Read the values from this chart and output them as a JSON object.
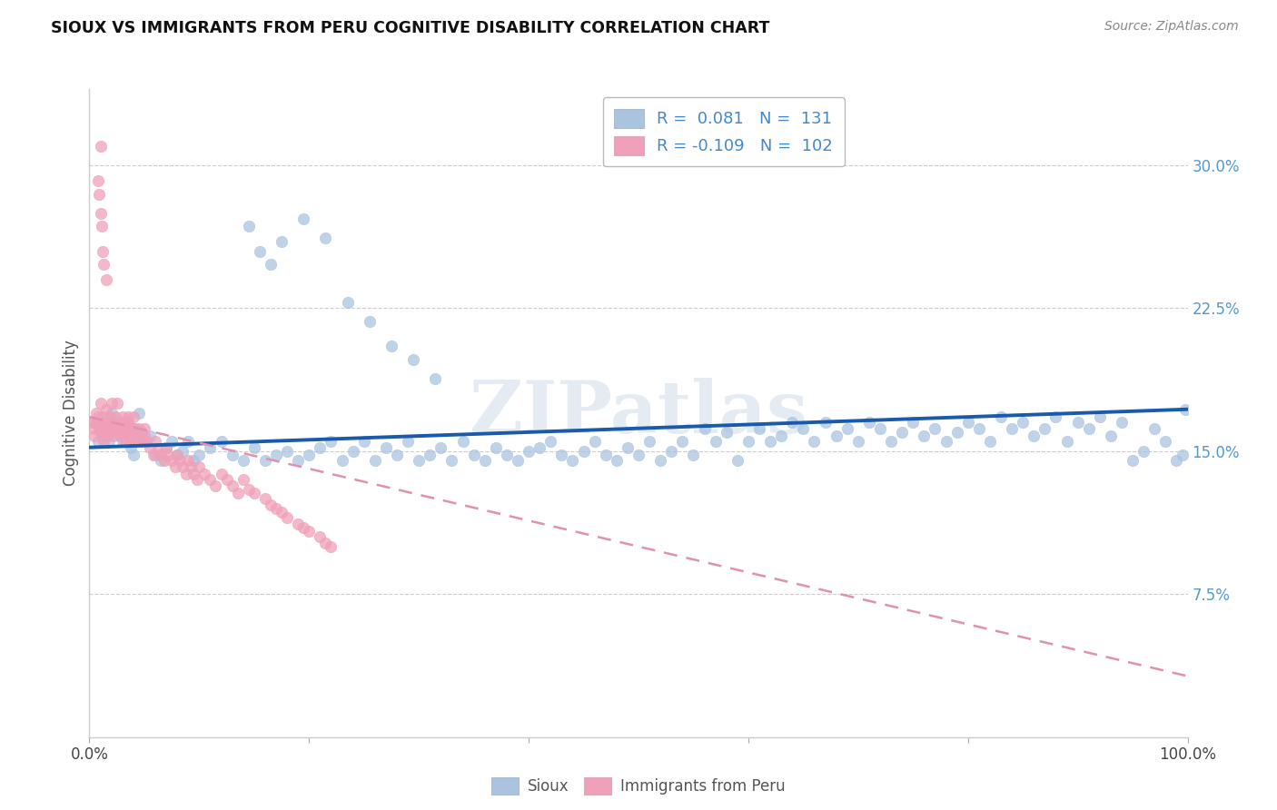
{
  "title": "SIOUX VS IMMIGRANTS FROM PERU COGNITIVE DISABILITY CORRELATION CHART",
  "source": "Source: ZipAtlas.com",
  "ylabel": "Cognitive Disability",
  "right_yticks": [
    "7.5%",
    "15.0%",
    "22.5%",
    "30.0%"
  ],
  "right_ytick_vals": [
    0.075,
    0.15,
    0.225,
    0.3
  ],
  "sioux_color": "#aac4e0",
  "peru_color": "#f0a0b8",
  "sioux_line_color": "#1a5aaa",
  "peru_line_color": "#e090b0",
  "background_color": "#ffffff",
  "watermark": "ZIPatlas",
  "xlim": [
    0.0,
    1.0
  ],
  "ylim": [
    0.0,
    0.34
  ],
  "sioux_trend_x": [
    0.0,
    1.0
  ],
  "sioux_trend_y": [
    0.152,
    0.172
  ],
  "peru_trend_x": [
    0.0,
    1.0
  ],
  "peru_trend_y": [
    0.168,
    0.032
  ],
  "sioux_scatter_x": [
    0.005,
    0.008,
    0.01,
    0.012,
    0.015,
    0.018,
    0.02,
    0.022,
    0.025,
    0.028,
    0.03,
    0.032,
    0.035,
    0.038,
    0.04,
    0.042,
    0.045,
    0.048,
    0.05,
    0.055,
    0.06,
    0.065,
    0.07,
    0.075,
    0.08,
    0.085,
    0.09,
    0.095,
    0.1,
    0.11,
    0.12,
    0.13,
    0.14,
    0.15,
    0.16,
    0.17,
    0.18,
    0.19,
    0.2,
    0.21,
    0.22,
    0.23,
    0.24,
    0.25,
    0.26,
    0.27,
    0.28,
    0.29,
    0.3,
    0.31,
    0.32,
    0.33,
    0.34,
    0.35,
    0.36,
    0.37,
    0.38,
    0.39,
    0.4,
    0.41,
    0.42,
    0.43,
    0.44,
    0.45,
    0.46,
    0.47,
    0.48,
    0.49,
    0.5,
    0.51,
    0.52,
    0.53,
    0.54,
    0.55,
    0.56,
    0.57,
    0.58,
    0.59,
    0.6,
    0.61,
    0.62,
    0.63,
    0.64,
    0.65,
    0.66,
    0.67,
    0.68,
    0.69,
    0.7,
    0.71,
    0.72,
    0.73,
    0.74,
    0.75,
    0.76,
    0.77,
    0.78,
    0.79,
    0.8,
    0.81,
    0.82,
    0.83,
    0.84,
    0.85,
    0.86,
    0.87,
    0.88,
    0.89,
    0.9,
    0.91,
    0.92,
    0.93,
    0.94,
    0.95,
    0.96,
    0.97,
    0.98,
    0.99,
    0.998,
    0.995,
    0.145,
    0.155,
    0.165,
    0.175,
    0.195,
    0.215,
    0.235,
    0.255,
    0.275,
    0.295,
    0.315
  ],
  "sioux_scatter_y": [
    0.165,
    0.155,
    0.16,
    0.158,
    0.162,
    0.155,
    0.17,
    0.165,
    0.163,
    0.158,
    0.155,
    0.16,
    0.165,
    0.152,
    0.148,
    0.162,
    0.17,
    0.16,
    0.155,
    0.158,
    0.148,
    0.145,
    0.152,
    0.155,
    0.148,
    0.15,
    0.155,
    0.145,
    0.148,
    0.152,
    0.155,
    0.148,
    0.145,
    0.152,
    0.145,
    0.148,
    0.15,
    0.145,
    0.148,
    0.152,
    0.155,
    0.145,
    0.15,
    0.155,
    0.145,
    0.152,
    0.148,
    0.155,
    0.145,
    0.148,
    0.152,
    0.145,
    0.155,
    0.148,
    0.145,
    0.152,
    0.148,
    0.145,
    0.15,
    0.152,
    0.155,
    0.148,
    0.145,
    0.15,
    0.155,
    0.148,
    0.145,
    0.152,
    0.148,
    0.155,
    0.145,
    0.15,
    0.155,
    0.148,
    0.162,
    0.155,
    0.16,
    0.145,
    0.155,
    0.162,
    0.155,
    0.158,
    0.165,
    0.162,
    0.155,
    0.165,
    0.158,
    0.162,
    0.155,
    0.165,
    0.162,
    0.155,
    0.16,
    0.165,
    0.158,
    0.162,
    0.155,
    0.16,
    0.165,
    0.162,
    0.155,
    0.168,
    0.162,
    0.165,
    0.158,
    0.162,
    0.168,
    0.155,
    0.165,
    0.162,
    0.168,
    0.158,
    0.165,
    0.145,
    0.15,
    0.162,
    0.155,
    0.145,
    0.172,
    0.148,
    0.268,
    0.255,
    0.248,
    0.26,
    0.272,
    0.262,
    0.228,
    0.218,
    0.205,
    0.198,
    0.188
  ],
  "peru_scatter_x": [
    0.003,
    0.004,
    0.005,
    0.006,
    0.007,
    0.008,
    0.009,
    0.01,
    0.01,
    0.011,
    0.012,
    0.013,
    0.014,
    0.015,
    0.015,
    0.016,
    0.017,
    0.018,
    0.019,
    0.02,
    0.02,
    0.021,
    0.022,
    0.022,
    0.023,
    0.024,
    0.025,
    0.025,
    0.026,
    0.027,
    0.028,
    0.029,
    0.03,
    0.03,
    0.031,
    0.032,
    0.033,
    0.034,
    0.035,
    0.035,
    0.036,
    0.037,
    0.038,
    0.039,
    0.04,
    0.04,
    0.042,
    0.043,
    0.045,
    0.046,
    0.048,
    0.05,
    0.05,
    0.052,
    0.055,
    0.058,
    0.06,
    0.062,
    0.065,
    0.068,
    0.07,
    0.072,
    0.075,
    0.078,
    0.08,
    0.082,
    0.085,
    0.088,
    0.09,
    0.092,
    0.095,
    0.098,
    0.1,
    0.105,
    0.11,
    0.115,
    0.12,
    0.125,
    0.13,
    0.135,
    0.14,
    0.145,
    0.15,
    0.16,
    0.165,
    0.17,
    0.175,
    0.18,
    0.19,
    0.195,
    0.2,
    0.21,
    0.215,
    0.22,
    0.008,
    0.009,
    0.01,
    0.01,
    0.011,
    0.012,
    0.013,
    0.015
  ],
  "peru_scatter_y": [
    0.165,
    0.162,
    0.158,
    0.17,
    0.165,
    0.168,
    0.162,
    0.175,
    0.16,
    0.165,
    0.168,
    0.155,
    0.162,
    0.165,
    0.172,
    0.158,
    0.165,
    0.162,
    0.168,
    0.16,
    0.175,
    0.165,
    0.162,
    0.158,
    0.165,
    0.168,
    0.162,
    0.175,
    0.16,
    0.165,
    0.162,
    0.158,
    0.165,
    0.168,
    0.162,
    0.16,
    0.155,
    0.165,
    0.162,
    0.168,
    0.158,
    0.162,
    0.155,
    0.16,
    0.162,
    0.168,
    0.158,
    0.155,
    0.162,
    0.158,
    0.155,
    0.162,
    0.158,
    0.155,
    0.152,
    0.148,
    0.155,
    0.15,
    0.148,
    0.145,
    0.152,
    0.148,
    0.145,
    0.142,
    0.148,
    0.145,
    0.142,
    0.138,
    0.145,
    0.142,
    0.138,
    0.135,
    0.142,
    0.138,
    0.135,
    0.132,
    0.138,
    0.135,
    0.132,
    0.128,
    0.135,
    0.13,
    0.128,
    0.125,
    0.122,
    0.12,
    0.118,
    0.115,
    0.112,
    0.11,
    0.108,
    0.105,
    0.102,
    0.1,
    0.292,
    0.285,
    0.31,
    0.275,
    0.268,
    0.255,
    0.248,
    0.24
  ]
}
